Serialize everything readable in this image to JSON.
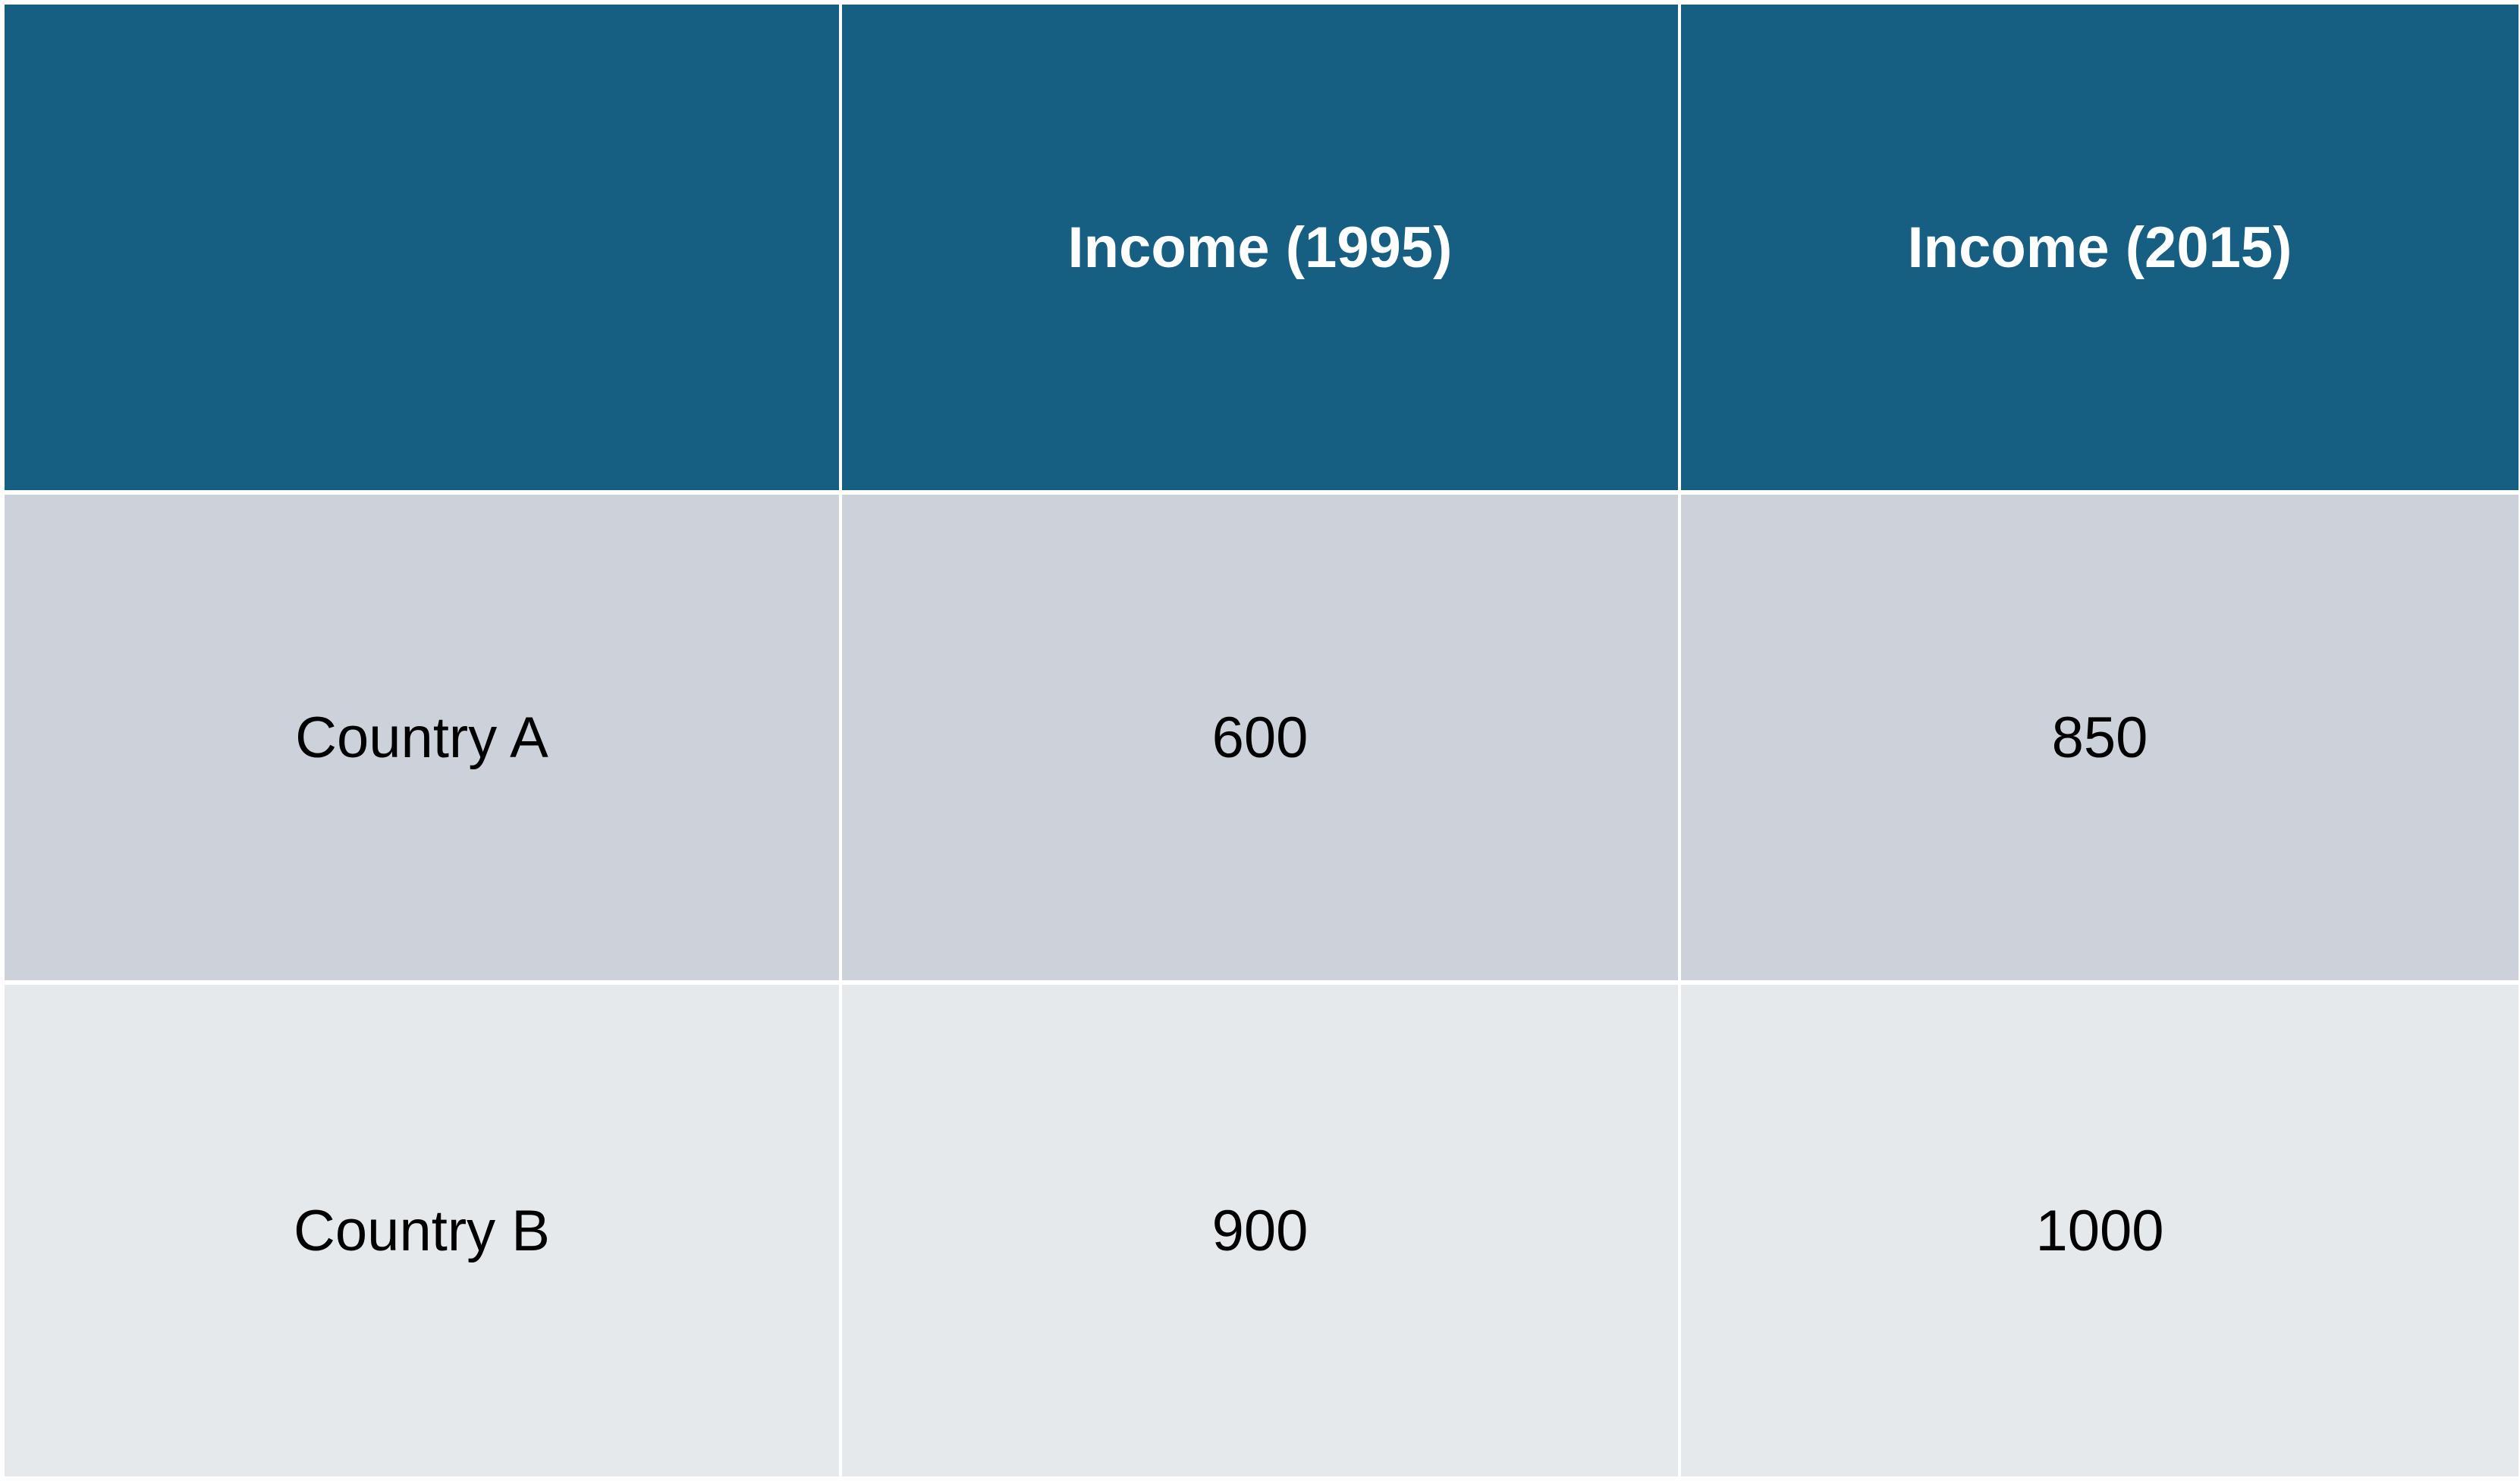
{
  "table": {
    "columns": [
      "",
      "Income (1995)",
      "Income (2015)"
    ],
    "rows": [
      {
        "label": "Country A",
        "values": [
          "600",
          "850"
        ]
      },
      {
        "label": "Country B",
        "values": [
          "900",
          "1000"
        ]
      }
    ]
  },
  "colors": {
    "header_bg": "#175f82",
    "header_text": "#ffffff",
    "row_a_bg": "#cdd1d9",
    "row_b_bg": "#e5e9ec",
    "grid_line": "#ffffff"
  }
}
